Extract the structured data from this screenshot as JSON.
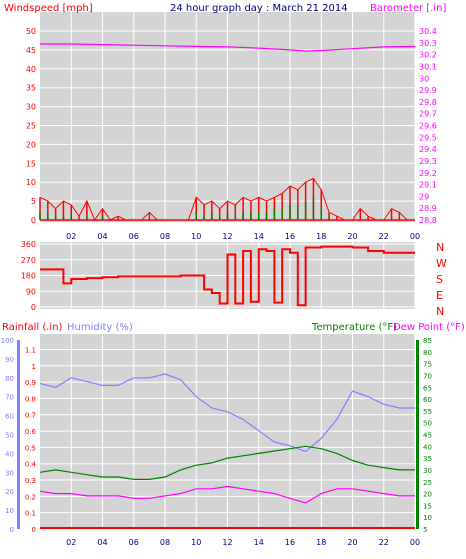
{
  "panels": {
    "wind": {
      "title": "24 hour graph day : March 21 2014",
      "left_label": "Windspeed [mph]",
      "right_label": "Barometer [.in]"
    },
    "direction": {
      "compass": [
        "N",
        "W",
        "S",
        "E",
        "N"
      ]
    },
    "climate": {
      "rainfall_label": "Rainfall (.in)",
      "humidity_label": "Humidity (%)",
      "temperature_label": "Temperature (°F)",
      "dewpoint_label": "Dew Point (°F)"
    }
  },
  "colors": {
    "background": "#d4d4d4",
    "grid": "#ffffff",
    "wind": "#ff0000",
    "gust": "#008000",
    "barometer": "#ff00ff",
    "direction": "#ff0000",
    "humidity": "#8080ff",
    "temperature": "#008000",
    "dewpoint": "#ff00ff",
    "rainfall": "#ff0000",
    "title": "#000080"
  },
  "chart_data": [
    {
      "type": "line",
      "name": "wind-panel",
      "x_ticks": [
        "02",
        "04",
        "06",
        "08",
        "10",
        "12",
        "14",
        "16",
        "18",
        "20",
        "22",
        "00"
      ],
      "y_left_ticks": [
        "0",
        "5",
        "10",
        "15",
        "20",
        "25",
        "30",
        "35",
        "40",
        "45",
        "50"
      ],
      "y_right_ticks": [
        "28.8",
        "28.9",
        "29",
        "29.1",
        "29.2",
        "29.3",
        "29.4",
        "29.5",
        "29.6",
        "29.7",
        "29.8",
        "29.9",
        "30",
        "30.1",
        "30.2",
        "30.3",
        "30.4"
      ],
      "ylim_left": [
        0,
        50
      ],
      "ylim_right": [
        28.8,
        30.4
      ],
      "series": [
        {
          "name": "Barometer",
          "x": [
            0,
            2,
            4,
            6,
            8,
            10,
            12,
            14,
            16,
            17,
            18,
            20,
            22,
            24
          ],
          "values": [
            30.29,
            30.29,
            30.285,
            30.28,
            30.275,
            30.27,
            30.265,
            30.255,
            30.24,
            30.23,
            30.235,
            30.25,
            30.265,
            30.27
          ]
        },
        {
          "name": "Windspeed",
          "x": [
            0,
            0.5,
            1,
            1.5,
            2,
            2.5,
            3,
            3.5,
            4,
            4.5,
            5,
            5.5,
            6,
            6.5,
            7,
            7.5,
            8,
            8.5,
            9,
            9.5,
            10,
            10.5,
            11,
            11.5,
            12,
            12.5,
            13,
            13.5,
            14,
            14.5,
            15,
            15.5,
            16,
            16.5,
            17,
            17.5,
            18,
            18.5,
            19,
            19.5,
            20,
            20.5,
            21,
            21.5,
            22,
            22.5,
            23,
            23.5,
            24
          ],
          "values": [
            6,
            5,
            3,
            5,
            4,
            1,
            5,
            0,
            3,
            0,
            1,
            0,
            0,
            0,
            2,
            0,
            0,
            0,
            0,
            0,
            6,
            4,
            5,
            3,
            5,
            4,
            6,
            5,
            6,
            5,
            6,
            7,
            9,
            8,
            10,
            11,
            8,
            2,
            1,
            0,
            0,
            3,
            1,
            0,
            0,
            3,
            2,
            0,
            0
          ]
        },
        {
          "name": "Gust",
          "x": [
            0,
            0.5,
            1,
            1.5,
            2,
            2.5,
            3,
            3.5,
            4,
            4.5,
            5,
            5.5,
            6,
            6.5,
            7,
            7.5,
            8,
            8.5,
            9,
            9.5,
            10,
            10.5,
            11,
            11.5,
            12,
            12.5,
            13,
            13.5,
            14,
            14.5,
            15,
            15.5,
            16,
            16.5,
            17,
            17.5,
            18,
            18.5,
            19,
            19.5,
            20,
            20.5,
            21,
            21.5,
            22,
            22.5,
            23,
            23.5,
            24
          ],
          "values": [
            2,
            2,
            1,
            1,
            1,
            0,
            1,
            0,
            1,
            0,
            0,
            0,
            0,
            0,
            0,
            0,
            0,
            0,
            0,
            0,
            2,
            1,
            2,
            1,
            2,
            1,
            2,
            2,
            2,
            2,
            3,
            3,
            4,
            4,
            5,
            6,
            3,
            1,
            0,
            0,
            0,
            0,
            0,
            0,
            0,
            0,
            0,
            0,
            0
          ]
        }
      ]
    },
    {
      "type": "line",
      "name": "direction-panel",
      "y_ticks": [
        "0",
        "90",
        "180",
        "270",
        "360"
      ],
      "ylim": [
        0,
        360
      ],
      "series": [
        {
          "name": "Wind Direction",
          "x": [
            0,
            1,
            1.5,
            2,
            3,
            4,
            5,
            6,
            7,
            8,
            9,
            10,
            10.5,
            11,
            11.5,
            12,
            12.5,
            13,
            13.5,
            14,
            14.5,
            15,
            15.5,
            16,
            16.5,
            17,
            17.5,
            18,
            19,
            20,
            21,
            22,
            23,
            24
          ],
          "values": [
            215,
            215,
            135,
            160,
            165,
            170,
            175,
            175,
            175,
            175,
            180,
            180,
            100,
            80,
            20,
            300,
            20,
            320,
            30,
            330,
            320,
            25,
            330,
            310,
            10,
            340,
            340,
            345,
            345,
            340,
            320,
            310,
            310,
            310
          ]
        }
      ]
    },
    {
      "type": "line",
      "name": "climate-panel",
      "y_left_ticks": [
        "0",
        "10",
        "20",
        "30",
        "40",
        "50",
        "60",
        "70",
        "80",
        "90",
        "100"
      ],
      "y_rain_ticks": [
        "0",
        "0.1",
        "0.2",
        "0.3",
        "0.4",
        "0.5",
        "0.6",
        "0.7",
        "0.8",
        "0.9",
        "1",
        "1.1"
      ],
      "y_right_ticks": [
        "5",
        "10",
        "15",
        "20",
        "25",
        "30",
        "35",
        "40",
        "45",
        "50",
        "55",
        "60",
        "65",
        "70",
        "75",
        "80",
        "85"
      ],
      "ylim_humidity": [
        0,
        100
      ],
      "ylim_temp": [
        5,
        85
      ],
      "series": [
        {
          "name": "Humidity",
          "x": [
            0,
            1,
            2,
            3,
            4,
            5,
            6,
            7,
            8,
            9,
            10,
            11,
            12,
            13,
            14,
            15,
            16,
            17,
            18,
            19,
            20,
            21,
            22,
            23,
            24
          ],
          "values": [
            77,
            75,
            80,
            78,
            76,
            76,
            80,
            80,
            82,
            79,
            70,
            64,
            62,
            58,
            52,
            46,
            44,
            41,
            48,
            58,
            73,
            70,
            66,
            64,
            64
          ]
        },
        {
          "name": "Temperature",
          "x": [
            0,
            1,
            2,
            3,
            4,
            5,
            6,
            7,
            8,
            9,
            10,
            11,
            12,
            13,
            14,
            15,
            16,
            17,
            18,
            19,
            20,
            21,
            22,
            23,
            24
          ],
          "values": [
            29,
            30,
            29,
            28,
            27,
            27,
            26,
            26,
            27,
            30,
            32,
            33,
            35,
            36,
            37,
            38,
            39,
            40,
            39,
            37,
            34,
            32,
            31,
            30,
            30
          ]
        },
        {
          "name": "Dew Point",
          "x": [
            0,
            1,
            2,
            3,
            4,
            5,
            6,
            7,
            8,
            9,
            10,
            11,
            12,
            13,
            14,
            15,
            16,
            17,
            18,
            19,
            20,
            21,
            22,
            23,
            24
          ],
          "values": [
            21,
            20,
            20,
            19,
            19,
            19,
            18,
            18,
            19,
            20,
            22,
            22,
            23,
            22,
            21,
            20,
            18,
            16,
            20,
            22,
            22,
            21,
            20,
            19,
            19
          ]
        },
        {
          "name": "Rainfall",
          "x": [
            0,
            24
          ],
          "values": [
            0,
            0
          ]
        }
      ]
    }
  ]
}
